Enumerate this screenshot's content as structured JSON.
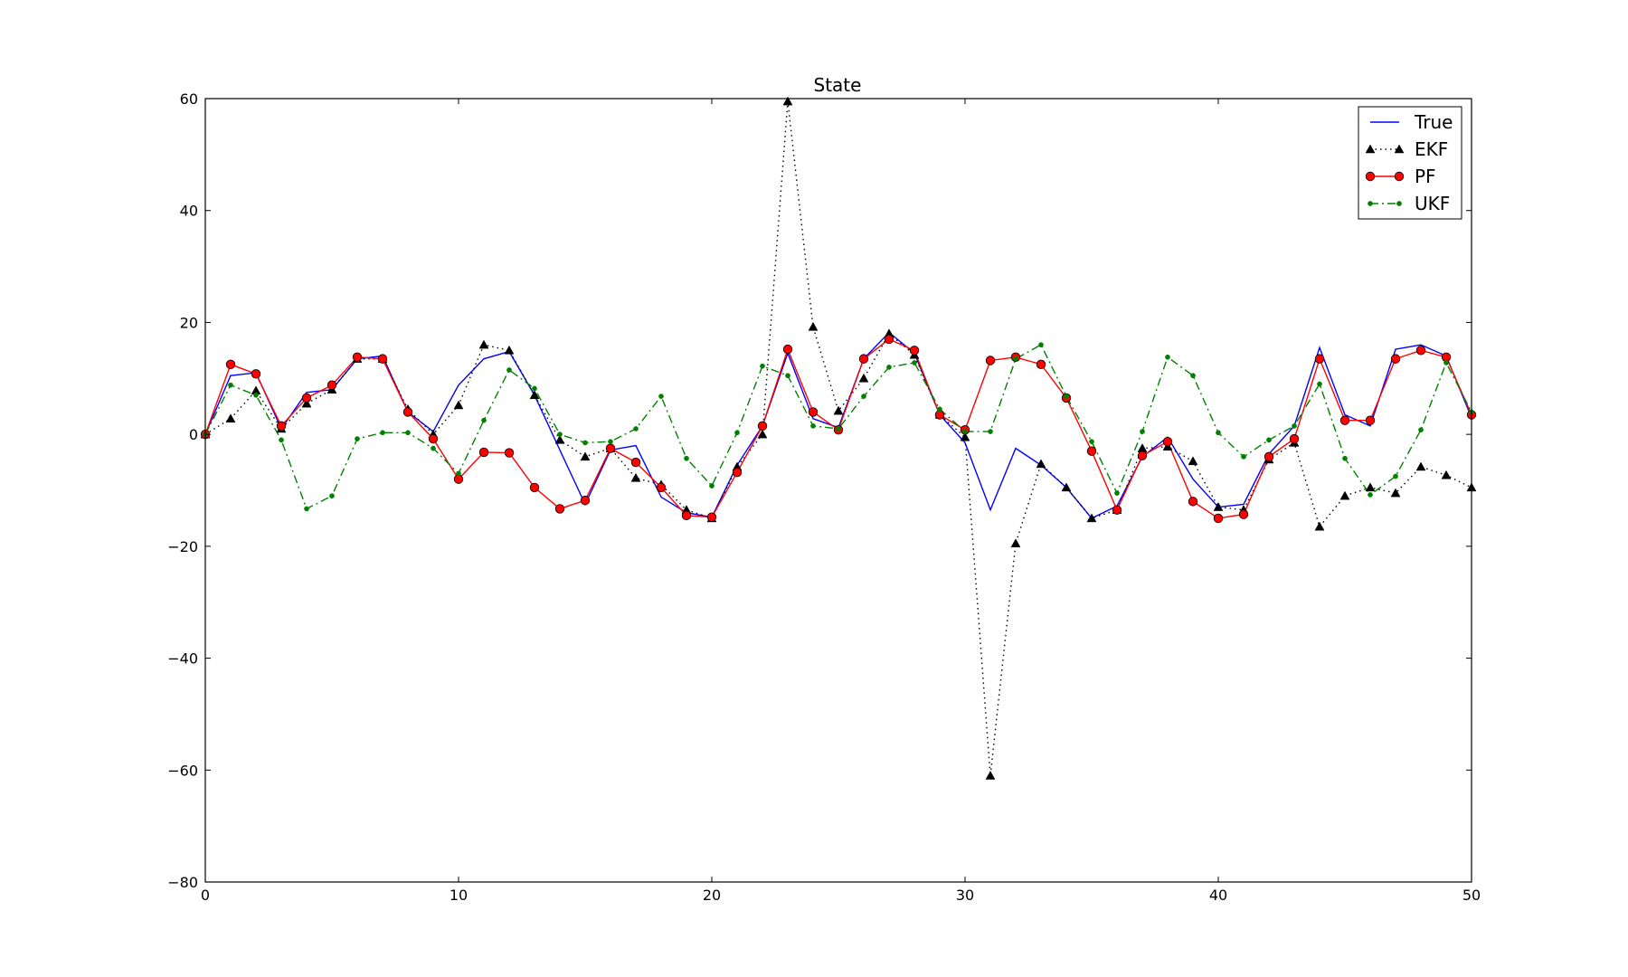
{
  "chart_data": {
    "type": "line",
    "title": "State",
    "xlabel": "",
    "ylabel": "",
    "xlim": [
      0,
      50
    ],
    "ylim": [
      -80,
      60
    ],
    "xticks": [
      0,
      10,
      20,
      30,
      40,
      50
    ],
    "yticks": [
      -80,
      -60,
      -40,
      -20,
      0,
      20,
      40,
      60
    ],
    "ytick_labels": [
      "−80",
      "−60",
      "−40",
      "−20",
      "0",
      "20",
      "40",
      "60"
    ],
    "xtick_labels": [
      "0",
      "10",
      "20",
      "30",
      "40",
      "50"
    ],
    "grid": false,
    "legend_position": "top-right",
    "x": [
      0,
      1,
      2,
      3,
      4,
      5,
      6,
      7,
      8,
      9,
      10,
      11,
      12,
      13,
      14,
      15,
      16,
      17,
      18,
      19,
      20,
      21,
      22,
      23,
      24,
      25,
      26,
      27,
      28,
      29,
      30,
      31,
      32,
      33,
      34,
      35,
      36,
      37,
      38,
      39,
      40,
      41,
      42,
      43,
      44,
      45,
      46,
      47,
      48,
      49,
      50
    ],
    "series": [
      {
        "name": "True",
        "color": "#0000ff",
        "style": "solid",
        "marker": "none",
        "values": [
          0,
          10.5,
          11,
          1,
          7.5,
          8,
          13.5,
          14,
          4,
          0.5,
          8.8,
          13.5,
          14.8,
          7,
          -2.8,
          -12.5,
          -2.8,
          -2,
          -11.2,
          -14,
          -14.8,
          -5.5,
          1.5,
          14.5,
          2.8,
          1.2,
          13.5,
          18.2,
          14.5,
          3.5,
          -1.5,
          -13.5,
          -2.5,
          -5.5,
          -9.5,
          -15,
          -12.8,
          -4,
          -0.5,
          -8,
          -13,
          -12.5,
          -3.5,
          1.5,
          15.5,
          3.5,
          1.5,
          15.2,
          16,
          14,
          3
        ]
      },
      {
        "name": "EKF",
        "color": "#000000",
        "style": "dotted",
        "marker": "triangle",
        "values": [
          0,
          2.8,
          7.8,
          1,
          5.5,
          8,
          13.5,
          13.5,
          4.5,
          0,
          5.2,
          16,
          15,
          7,
          -1,
          -4,
          -2.5,
          -7.8,
          -9,
          -13.5,
          -15,
          -5.8,
          0,
          59.5,
          19.2,
          4.2,
          10,
          18,
          14.2,
          3.5,
          -0.5,
          -61,
          -19.5,
          -5.3,
          -9.5,
          -15,
          -13.5,
          -2.5,
          -2.2,
          -4.8,
          -13,
          -13.5,
          -4.5,
          -1.5,
          -16.5,
          -11,
          -9.5,
          -10.5,
          -5.8,
          -7.3,
          -9.5
        ]
      },
      {
        "name": "PF",
        "color": "#ff0000",
        "style": "solid",
        "marker": "circle",
        "values": [
          0,
          12.5,
          10.8,
          1.5,
          6.5,
          8.8,
          13.8,
          13.5,
          4,
          -0.8,
          -8,
          -3.2,
          -3.3,
          -9.5,
          -13.3,
          -11.8,
          -2.5,
          -5,
          -9.5,
          -14.5,
          -14.8,
          -6.8,
          1.5,
          15.2,
          4,
          0.8,
          13.5,
          17,
          15,
          3.5,
          0.8,
          13.2,
          13.8,
          12.5,
          6.5,
          -3,
          -13.5,
          -3.8,
          -1.3,
          -12,
          -15,
          -14.3,
          -4,
          -0.8,
          13.5,
          2.5,
          2.5,
          13.5,
          15,
          13.8,
          3.5
        ]
      },
      {
        "name": "UKF",
        "color": "#008000",
        "style": "dashdot",
        "marker": "dot",
        "values": [
          0,
          8.8,
          7,
          -1,
          -13.3,
          -11,
          -0.8,
          0.3,
          0.3,
          -2.5,
          -7,
          2.5,
          11.5,
          8.2,
          0,
          -1.5,
          -1.3,
          1,
          6.8,
          -4.3,
          -9.2,
          0.3,
          12.2,
          10.5,
          1.5,
          1,
          6.8,
          12,
          12.8,
          4.5,
          0.5,
          0.5,
          13.5,
          16,
          6.8,
          -1.3,
          -10.5,
          0.5,
          13.8,
          10.5,
          0.3,
          -4,
          -1,
          1.5,
          9,
          -4.3,
          -10.8,
          -7.5,
          0.8,
          12.8,
          4
        ]
      }
    ]
  }
}
